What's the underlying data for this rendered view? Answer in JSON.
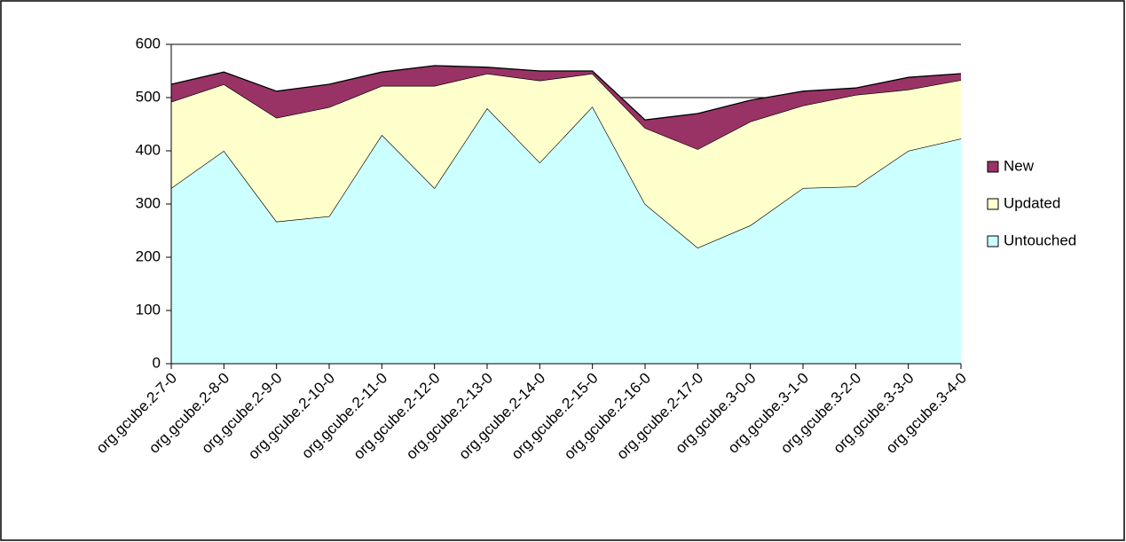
{
  "chart_data": {
    "type": "stacked_area",
    "categories": [
      "org.gcube.2-7-0",
      "org.gcube.2-8-0",
      "org.gcube.2-9-0",
      "org.gcube.2-10-0",
      "org.gcube.2-11-0",
      "org.gcube.2-12-0",
      "org.gcube.2-13-0",
      "org.gcube.2-14-0",
      "org.gcube.2-15-0",
      "org.gcube.2-16-0",
      "org.gcube.2-17-0",
      "org.gcube.3-0-0",
      "org.gcube.3-1-0",
      "org.gcube.3-2-0",
      "org.gcube.3-3-0",
      "org.gcube.3-4-0"
    ],
    "series": [
      {
        "name": "Untouched",
        "color": "#ccffff",
        "values": [
          330,
          400,
          267,
          277,
          430,
          330,
          480,
          378,
          483,
          300,
          218,
          260,
          330,
          333,
          400,
          423
        ]
      },
      {
        "name": "Updated",
        "color": "#ffffcc",
        "values": [
          162,
          125,
          195,
          205,
          92,
          192,
          65,
          154,
          62,
          143,
          185,
          195,
          155,
          172,
          115,
          110
        ]
      },
      {
        "name": "New",
        "color": "#993366",
        "values": [
          33,
          23,
          50,
          43,
          26,
          38,
          12,
          18,
          5,
          15,
          67,
          40,
          27,
          13,
          23,
          12
        ]
      }
    ],
    "ylim": [
      0,
      600
    ],
    "yticks": [
      0,
      100,
      200,
      300,
      400,
      500,
      600
    ],
    "grid": true,
    "legend": "right"
  }
}
